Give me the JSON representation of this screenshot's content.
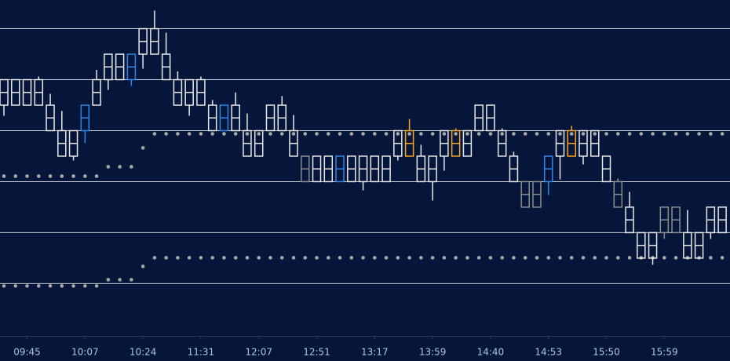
{
  "chart_data": {
    "type": "candlestick",
    "background": "#06163a",
    "grid_color": "#c8cbd6",
    "ylim": [
      -4.1,
      22.25
    ],
    "grid_lines": [
      20,
      16,
      12,
      8,
      4,
      0
    ],
    "categories": [
      null,
      null,
      "09:45",
      null,
      null,
      null,
      null,
      "10:07",
      null,
      null,
      null,
      null,
      "10:24",
      null,
      null,
      null,
      null,
      "11:31",
      null,
      null,
      null,
      null,
      "12:07",
      null,
      null,
      null,
      null,
      "12:51",
      null,
      null,
      null,
      null,
      "13:17",
      null,
      null,
      null,
      null,
      "13:59",
      null,
      null,
      null,
      null,
      "14:40",
      null,
      null,
      null,
      null,
      "14:53",
      null,
      null,
      null,
      null,
      "15:50",
      null,
      null,
      null,
      null,
      "15:59",
      null,
      null,
      null,
      null,
      null
    ],
    "top": [
      16,
      16,
      16,
      16,
      14,
      12,
      12,
      14,
      16,
      18,
      18,
      18,
      20,
      20,
      18,
      16,
      16,
      16,
      14,
      14,
      14,
      12,
      12,
      14,
      14,
      12,
      10,
      10,
      10,
      10,
      10,
      10,
      10,
      10,
      12,
      12,
      10,
      10,
      12,
      12,
      12,
      14,
      14,
      12,
      10,
      8,
      8,
      10,
      12,
      12,
      12,
      12,
      10,
      8,
      6,
      4,
      4,
      6,
      6,
      4,
      4,
      6,
      6
    ],
    "bottom": [
      14,
      14,
      14,
      14,
      12,
      10,
      10,
      12,
      14,
      16,
      16,
      16,
      18,
      18,
      16,
      14,
      14,
      14,
      12,
      12,
      12,
      10,
      10,
      12,
      12,
      10,
      8,
      8,
      8,
      8,
      8,
      8,
      8,
      8,
      10,
      10,
      8,
      8,
      10,
      10,
      10,
      12,
      12,
      10,
      8,
      6,
      6,
      8,
      10,
      10,
      10,
      10,
      8,
      6,
      4,
      2,
      2,
      4,
      4,
      2,
      2,
      4,
      4
    ],
    "high": [
      16,
      16,
      16,
      16.25,
      14.89,
      13.54,
      12,
      14,
      16.77,
      18,
      18,
      18,
      20,
      21.42,
      19.69,
      16.65,
      16,
      16.25,
      14.4,
      14,
      15.0,
      13.35,
      12,
      14,
      14.71,
      13.23,
      10,
      10,
      10,
      10,
      10,
      10,
      10,
      10,
      12,
      12.92,
      10.89,
      10,
      12,
      12.18,
      12,
      14,
      14,
      12.18,
      10.34,
      8,
      8,
      10,
      12,
      12.37,
      12,
      12,
      10,
      8.25,
      7.2,
      4,
      4,
      6,
      6,
      5.78,
      4,
      6,
      6
    ],
    "low": [
      13.17,
      14,
      14,
      14,
      12,
      10,
      9.66,
      11.02,
      14,
      15.2,
      16,
      15.51,
      16.86,
      18,
      16,
      14,
      13.17,
      14,
      12,
      12,
      12,
      10,
      10,
      12,
      12,
      10,
      8,
      8,
      8,
      8,
      8,
      7.32,
      8,
      8,
      9.66,
      10,
      8,
      6.52,
      8.86,
      10,
      10,
      12,
      12,
      10,
      8,
      6,
      6,
      6.95,
      8.18,
      10,
      9.35,
      10,
      8,
      6,
      4,
      2,
      1.48,
      3.51,
      4,
      2,
      2,
      3.51,
      4
    ],
    "colors": [
      "#e8e8e8",
      "#e8e8e8",
      "#e8e8e8",
      "#e8e8e8",
      "#e8e8e8",
      "#e8e8e8",
      "#e8e8e8",
      "#2f86e6",
      "#e8e8e8",
      "#e8e8e8",
      "#e8e8e8",
      "#2f86e6",
      "#e8e8e8",
      "#e8e8e8",
      "#e8e8e8",
      "#e8e8e8",
      "#e8e8e8",
      "#e8e8e8",
      "#e8e8e8",
      "#2f86e6",
      "#e8e8e8",
      "#e8e8e8",
      "#e8e8e8",
      "#e8e8e8",
      "#e8e8e8",
      "#e8e8e8",
      "#8c8c8c",
      "#e8e8e8",
      "#e8e8e8",
      "#2f86e6",
      "#e8e8e8",
      "#e8e8e8",
      "#e8e8e8",
      "#e8e8e8",
      "#e8e8e8",
      "#f5a623",
      "#e8e8e8",
      "#e8e8e8",
      "#e8e8e8",
      "#f5a623",
      "#e8e8e8",
      "#e8e8e8",
      "#e8e8e8",
      "#e8e8e8",
      "#e8e8e8",
      "#8c8c8c",
      "#8c8c8c",
      "#2f86e6",
      "#e8e8e8",
      "#f5a623",
      "#e8e8e8",
      "#e8e8e8",
      "#e8e8e8",
      "#8c8c8c",
      "#e8e8e8",
      "#e8e8e8",
      "#e8e8e8",
      "#8c8c8c",
      "#8c8c8c",
      "#e8e8e8",
      "#e8e8e8",
      "#e8e8e8",
      "#e8e8e8"
    ],
    "overlays": [
      {
        "color": "#a8a8a8",
        "values": [
          8.43,
          8.43,
          8.43,
          8.43,
          8.43,
          8.43,
          8.43,
          8.43,
          8.43,
          9.17,
          9.17,
          9.17,
          10.65,
          11.75,
          11.75,
          11.75,
          11.75,
          11.75,
          11.75,
          11.75,
          11.75,
          11.75,
          11.75,
          11.75,
          11.75,
          11.75,
          11.75,
          11.75,
          11.75,
          11.75,
          11.75,
          11.75,
          11.75,
          11.75,
          11.75,
          11.75,
          11.75,
          11.75,
          11.75,
          11.75,
          11.75,
          11.75,
          11.75,
          11.75,
          11.75,
          11.75,
          11.75,
          11.75,
          11.75,
          11.75,
          11.75,
          11.75,
          11.75,
          11.75,
          11.75,
          11.75,
          11.75,
          11.75,
          11.75,
          11.75,
          11.75,
          11.75,
          11.75
        ]
      },
      {
        "color": "#a8a8a8",
        "values": [
          -0.18,
          -0.18,
          -0.18,
          -0.18,
          -0.18,
          -0.18,
          -0.18,
          -0.18,
          -0.18,
          0.31,
          0.31,
          0.31,
          1.35,
          2.03,
          2.03,
          2.03,
          2.03,
          2.03,
          2.03,
          2.03,
          2.03,
          2.03,
          2.03,
          2.03,
          2.03,
          2.03,
          2.03,
          2.03,
          2.03,
          2.03,
          2.03,
          2.03,
          2.03,
          2.03,
          2.03,
          2.03,
          2.03,
          2.03,
          2.03,
          2.03,
          2.03,
          2.03,
          2.03,
          2.03,
          2.03,
          2.03,
          2.03,
          2.03,
          2.03,
          2.03,
          2.03,
          2.03,
          2.03,
          2.03,
          2.03,
          2.03,
          2.03,
          2.03,
          2.03,
          2.03,
          2.03,
          2.03,
          2.03
        ]
      }
    ]
  }
}
